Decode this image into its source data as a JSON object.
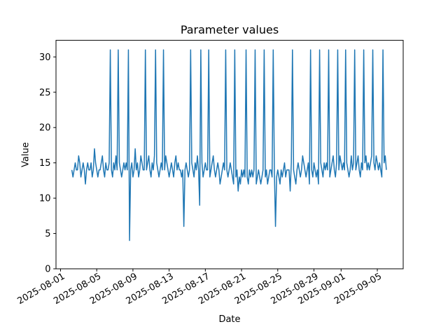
{
  "figure": {
    "background": "#ffffff",
    "text_color": "#000000"
  },
  "chart_data": {
    "type": "line",
    "title": "Parameter values",
    "xlabel": "Date",
    "ylabel": "Value",
    "line_color": "#1f77b4",
    "line_width": 1.5,
    "grid": false,
    "legend": null,
    "ylim": [
      0,
      32.35
    ],
    "yticks": [
      0,
      5,
      10,
      15,
      20,
      25,
      30
    ],
    "x_unit": "days since 2025-08-01 00:00",
    "xlim_days": [
      -0.5,
      37.86
    ],
    "xticks": [
      {
        "day": 0,
        "label": "2025-08-01"
      },
      {
        "day": 4,
        "label": "2025-08-05"
      },
      {
        "day": 8,
        "label": "2025-08-09"
      },
      {
        "day": 12,
        "label": "2025-08-13"
      },
      {
        "day": 16,
        "label": "2025-08-17"
      },
      {
        "day": 20,
        "label": "2025-08-21"
      },
      {
        "day": 24,
        "label": "2025-08-25"
      },
      {
        "day": 28,
        "label": "2025-08-29"
      },
      {
        "day": 31,
        "label": "2025-09-01"
      },
      {
        "day": 35,
        "label": "2025-09-05"
      }
    ],
    "series_name": "Parameter",
    "x_start_day": 1.25,
    "x_step_days": 0.125,
    "baseline_range": [
      13,
      16
    ],
    "spike_value": 31,
    "notable_dips": [
      {
        "day": 7.5,
        "value": 4
      },
      {
        "day": 13.6,
        "value": 6
      },
      {
        "day": 15.4,
        "value": 9
      },
      {
        "day": 19.6,
        "value": 11
      },
      {
        "day": 23.75,
        "value": 6
      },
      {
        "day": 25.4,
        "value": 11
      }
    ],
    "values": [
      14,
      13,
      14,
      15,
      14,
      14,
      16,
      15,
      13,
      14,
      15,
      14,
      12,
      14,
      15,
      14,
      14,
      15,
      13,
      14,
      17,
      15,
      14,
      13,
      14,
      14,
      15,
      16,
      14,
      13,
      15,
      14,
      14,
      15,
      31,
      14,
      13,
      15,
      14,
      16,
      14,
      31,
      15,
      14,
      13,
      14,
      15,
      14,
      15,
      14,
      31,
      4,
      14,
      15,
      13,
      14,
      17,
      14,
      15,
      13,
      14,
      16,
      15,
      14,
      14,
      31,
      14,
      15,
      16,
      14,
      13,
      15,
      14,
      16,
      31,
      15,
      14,
      13,
      14,
      15,
      14,
      31,
      14,
      16,
      15,
      14,
      13,
      14,
      15,
      14,
      13,
      15,
      16,
      14,
      15,
      14,
      14,
      13,
      14,
      6,
      14,
      15,
      14,
      13,
      14,
      31,
      15,
      14,
      13,
      15,
      14,
      16,
      14,
      9,
      31,
      15,
      13,
      14,
      15,
      14,
      14,
      31,
      13,
      14,
      15,
      16,
      14,
      13,
      14,
      15,
      14,
      12,
      13,
      14,
      15,
      14,
      31,
      14,
      13,
      14,
      15,
      14,
      13,
      12,
      31,
      13,
      14,
      11,
      13,
      12,
      14,
      13,
      14,
      13,
      31,
      13,
      12,
      14,
      13,
      14,
      13,
      14,
      31,
      12,
      13,
      14,
      13,
      12,
      13,
      14,
      31,
      13,
      14,
      12,
      13,
      14,
      14,
      13,
      31,
      14,
      6,
      13,
      14,
      13,
      12,
      14,
      13,
      14,
      15,
      13,
      14,
      14,
      14,
      11,
      15,
      31,
      14,
      13,
      12,
      14,
      15,
      14,
      13,
      14,
      16,
      15,
      14,
      13,
      14,
      15,
      12,
      31,
      14,
      13,
      15,
      14,
      13,
      14,
      12,
      31,
      15,
      14,
      13,
      15,
      14,
      15,
      14,
      31,
      13,
      14,
      15,
      16,
      14,
      13,
      15,
      31,
      14,
      16,
      15,
      14,
      15,
      14,
      31,
      15,
      14,
      13,
      14,
      16,
      14,
      15,
      31,
      14,
      15,
      16,
      14,
      13,
      15,
      14,
      31,
      15,
      16,
      14,
      15,
      14,
      15,
      16,
      31,
      15,
      14,
      16,
      15,
      14,
      15,
      14,
      13,
      31,
      15,
      16,
      14
    ]
  }
}
